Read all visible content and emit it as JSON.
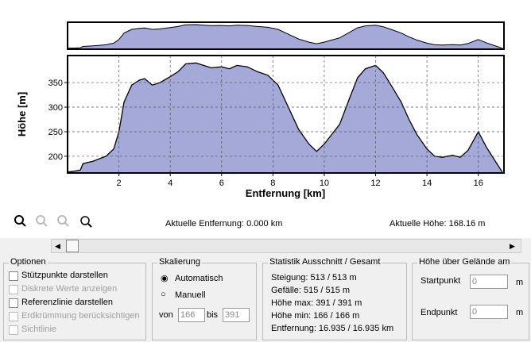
{
  "chart_data": {
    "type": "area",
    "color": "#a4a9d8",
    "xlabel": "Entfernung [km]",
    "ylabel": "Höhe [m]",
    "x": [
      0,
      0.3,
      0.5,
      0.6,
      1,
      1.5,
      1.8,
      2,
      2.2,
      2.5,
      2.8,
      3,
      3.3,
      3.6,
      4,
      4.3,
      4.6,
      5,
      5.3,
      5.6,
      6,
      6.3,
      6.6,
      7,
      7.4,
      7.8,
      8.2,
      8.6,
      9,
      9.4,
      9.7,
      10,
      10.3,
      10.6,
      11,
      11.3,
      11.6,
      12,
      12.3,
      12.6,
      13,
      13.3,
      13.6,
      14,
      14.3,
      14.6,
      15,
      15.3,
      15.6,
      16,
      16.3,
      16.6,
      16.935
    ],
    "values": [
      168,
      170,
      172,
      185,
      190,
      200,
      215,
      250,
      310,
      345,
      355,
      358,
      345,
      350,
      362,
      372,
      388,
      390,
      385,
      380,
      382,
      378,
      385,
      382,
      372,
      365,
      345,
      300,
      255,
      225,
      210,
      225,
      245,
      265,
      320,
      360,
      378,
      385,
      370,
      345,
      310,
      275,
      245,
      215,
      200,
      198,
      202,
      198,
      212,
      250,
      220,
      195,
      168
    ],
    "xlim": [
      0,
      17
    ],
    "ylim": [
      166,
      405
    ],
    "xticks": [
      2,
      4,
      6,
      8,
      10,
      12,
      14,
      16
    ],
    "yticks": [
      200,
      250,
      300,
      350
    ],
    "grid": true
  },
  "status": {
    "distance": "Aktuelle Entfernung: 0.000 km",
    "height": "Aktuelle Höhe: 168.16 m"
  },
  "options": {
    "title": "Optionen",
    "items": [
      "Stützpunkte darstellen",
      "Diskrete Werte anzeigen",
      "Referenzlinie darstellen",
      "Erdkrümmung berücksichtigen",
      "Sichtlinie"
    ]
  },
  "scaling": {
    "title": "Skalierung",
    "auto": "Automatisch",
    "manual": "Manuell",
    "from_label": "von",
    "from": "166",
    "to_label": "bis",
    "to": "391"
  },
  "statistics": {
    "title": "Statistik  Ausschnitt / Gesamt",
    "lines": [
      "Steigung: 513 / 513 m",
      "Gefälle: 515 / 515 m",
      "Höhe max: 391 / 391 m",
      "Höhe min: 166 / 166 m",
      "Entfernung: 16.935 / 16.935 km"
    ]
  },
  "terrain": {
    "title": "Höhe über Gelände am",
    "start_label": "Startpunkt",
    "start": "0",
    "end_label": "Endpunkt",
    "end": "0",
    "unit": "m"
  }
}
